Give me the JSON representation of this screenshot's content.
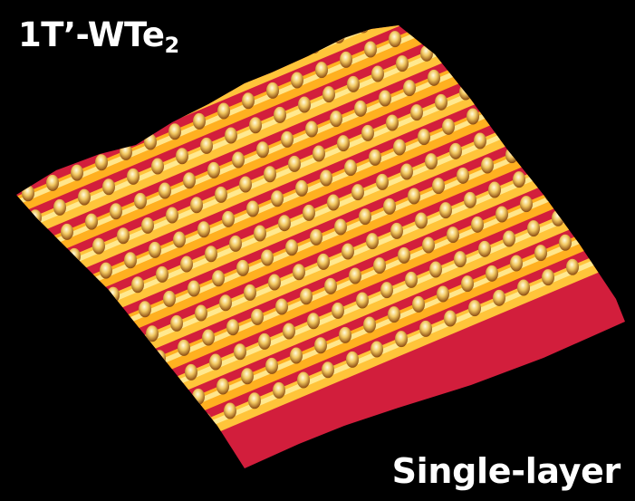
{
  "title": {
    "main": "1T’-WTe",
    "subscript": "2"
  },
  "caption": "Single-layer",
  "colors": {
    "background": "#000000",
    "valley": "#d21e3c",
    "ridge": "#ffb400",
    "peak": "#fff0a0",
    "text": "#ffffff"
  }
}
